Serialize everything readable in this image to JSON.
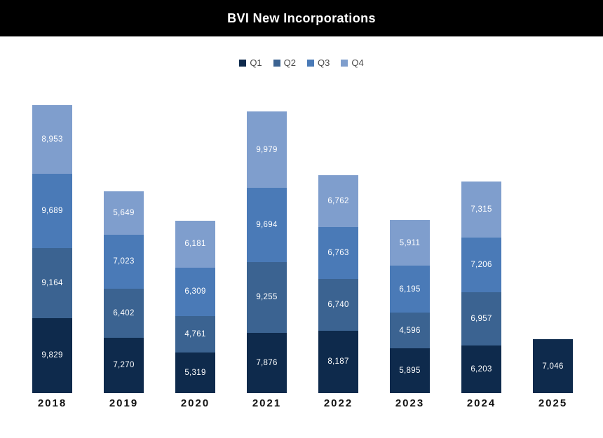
{
  "header": {
    "title": "BVI New Incorporations",
    "background_color": "#000000",
    "text_color": "#ffffff"
  },
  "chart_data": {
    "type": "bar",
    "stacked": true,
    "title": "BVI New Incorporations",
    "xlabel": "",
    "ylabel": "",
    "grid": false,
    "legend_position": "top",
    "value_labels": "inside-white",
    "categories": [
      "2018",
      "2019",
      "2020",
      "2021",
      "2022",
      "2023",
      "2024",
      "2025"
    ],
    "series": [
      {
        "name": "Q1",
        "color": "#0e2a4c",
        "values": [
          9829,
          7270,
          5319,
          7876,
          8187,
          5895,
          6203,
          7046
        ]
      },
      {
        "name": "Q2",
        "color": "#3b6391",
        "values": [
          9164,
          6402,
          4761,
          9255,
          6740,
          4596,
          6957,
          null
        ]
      },
      {
        "name": "Q3",
        "color": "#4a7ab7",
        "values": [
          9689,
          7023,
          6309,
          9694,
          6763,
          6195,
          7206,
          null
        ]
      },
      {
        "name": "Q4",
        "color": "#7f9ecd",
        "values": [
          8953,
          5649,
          6181,
          9979,
          6762,
          5911,
          7315,
          null
        ]
      }
    ],
    "totals": [
      37635,
      26344,
      22570,
      36804,
      28452,
      22597,
      27681,
      7046
    ]
  }
}
